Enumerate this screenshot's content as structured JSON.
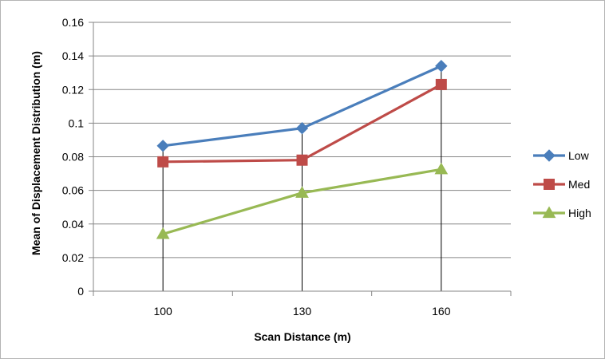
{
  "chart_data": {
    "type": "line",
    "title": "",
    "xlabel": "Scan Distance (m)",
    "ylabel": "Mean of Displacement Distribution (m)",
    "categories": [
      "100",
      "130",
      "160"
    ],
    "ylim": [
      0,
      0.16
    ],
    "yticks": [
      "0",
      "0.02",
      "0.04",
      "0.06",
      "0.08",
      "0.1",
      "0.12",
      "0.14",
      "0.16"
    ],
    "grid": true,
    "legend_position": "right",
    "drop_lines": true,
    "series": [
      {
        "name": "Low",
        "values": [
          0.0865,
          0.097,
          0.134
        ],
        "color": "#4a7ebb",
        "marker": "diamond"
      },
      {
        "name": "Med",
        "values": [
          0.077,
          0.078,
          0.123
        ],
        "color": "#be4b48",
        "marker": "square"
      },
      {
        "name": "High",
        "values": [
          0.034,
          0.0585,
          0.0725
        ],
        "color": "#98b954",
        "marker": "triangle"
      }
    ]
  }
}
